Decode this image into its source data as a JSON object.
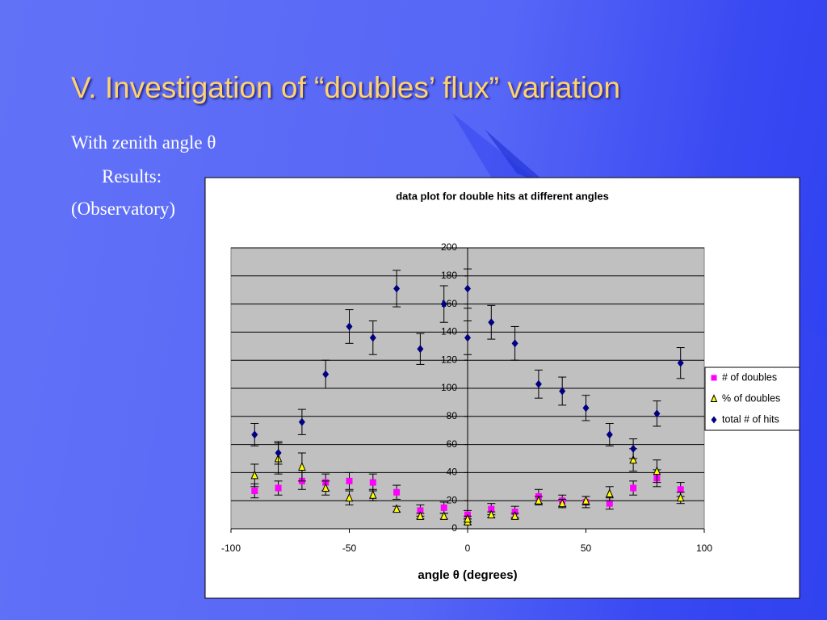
{
  "slide": {
    "title": "V. Investigation of “doubles’ flux” variation",
    "lines": [
      "With zenith angle θ",
      "Results:",
      "(Observatory)"
    ]
  },
  "chart_data": {
    "type": "scatter",
    "title": "data plot for double hits at different angles",
    "x_label": "angle θ (degrees)",
    "xlim": [
      -100,
      100
    ],
    "xticks": [
      -100,
      -50,
      0,
      50,
      100
    ],
    "ylim": [
      0,
      200
    ],
    "yticks": [
      0,
      20,
      40,
      60,
      80,
      100,
      120,
      140,
      160,
      180,
      200
    ],
    "grid": true,
    "legend": "right",
    "series": [
      {
        "name": "# of doubles",
        "color": "#ff00ff",
        "marker": "square",
        "x": [
          -90,
          -80,
          -70,
          -60,
          -50,
          -40,
          -30,
          -20,
          -10,
          0,
          10,
          20,
          30,
          40,
          50,
          60,
          70,
          80,
          90
        ],
        "values": [
          27,
          29,
          34,
          33,
          34,
          33,
          26,
          13,
          15,
          10,
          14,
          12,
          23,
          20,
          19,
          18,
          29,
          36,
          28
        ],
        "errors": [
          5,
          5,
          6,
          6,
          6,
          6,
          5,
          4,
          4,
          3,
          4,
          4,
          5,
          4,
          4,
          4,
          5,
          6,
          5
        ]
      },
      {
        "name": "% of doubles",
        "color": "#ffff00",
        "marker": "triangle",
        "x": [
          -90,
          -80,
          -70,
          -60,
          -50,
          -40,
          -30,
          -20,
          -10,
          0,
          0,
          10,
          20,
          30,
          40,
          50,
          60,
          70,
          80,
          90
        ],
        "values": [
          38,
          50,
          44,
          29,
          22,
          24,
          14,
          9,
          9,
          5,
          7,
          10,
          9,
          20,
          18,
          20,
          25,
          49,
          41,
          22
        ],
        "errors": [
          8,
          11,
          10,
          5,
          5,
          4,
          2,
          2,
          2,
          2,
          2,
          2,
          2,
          3,
          3,
          3,
          5,
          8,
          8,
          4
        ]
      },
      {
        "name": "total # of hits",
        "color": "#000080",
        "marker": "diamond",
        "x": [
          -90,
          -80,
          -70,
          -60,
          -50,
          -40,
          -30,
          -20,
          -10,
          0,
          0,
          10,
          20,
          30,
          40,
          50,
          60,
          70,
          80,
          90
        ],
        "values": [
          67,
          54,
          76,
          110,
          144,
          136,
          171,
          128,
          160,
          171,
          136,
          147,
          132,
          103,
          98,
          86,
          67,
          57,
          82,
          118
        ],
        "errors": [
          8,
          8,
          9,
          10,
          12,
          12,
          13,
          11,
          13,
          14,
          12,
          12,
          12,
          10,
          10,
          9,
          8,
          7,
          9,
          11
        ]
      }
    ]
  }
}
